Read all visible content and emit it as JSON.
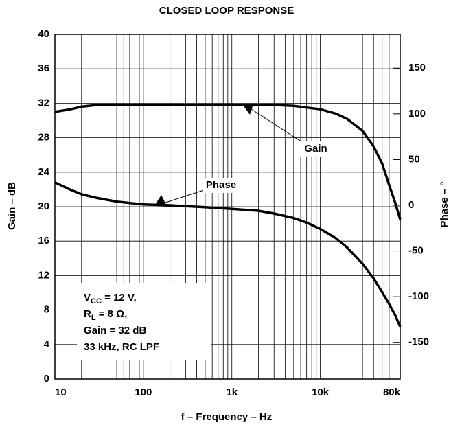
{
  "chart_data": {
    "type": "line",
    "title": "CLOSED LOOP RESPONSE",
    "xlabel": "f – Frequency – Hz",
    "ylabel": "Gain – dB",
    "y2label": "Phase – °",
    "xscale": "log",
    "xlim": [
      10,
      80000
    ],
    "xticks": [
      10,
      100,
      {
        "value": 1000,
        "label": "1k"
      },
      {
        "value": 10000,
        "label": "10k"
      },
      {
        "value": 80000,
        "label": "80k"
      }
    ],
    "ylim": [
      0,
      40
    ],
    "yticks": [
      0,
      4,
      8,
      12,
      16,
      20,
      24,
      28,
      32,
      36,
      40
    ],
    "y2lim": [
      -190,
      187
    ],
    "y2ticks": [
      -150,
      -100,
      -50,
      0,
      50,
      100,
      150
    ],
    "grid": true,
    "x": [
      10,
      15,
      20,
      30,
      50,
      100,
      200,
      500,
      1000,
      2000,
      3000,
      5000,
      7000,
      10000,
      15000,
      20000,
      30000,
      40000,
      50000,
      60000,
      70000,
      80000
    ],
    "series": [
      {
        "name": "Gain",
        "color": "#000000",
        "values": [
          31,
          31.3,
          31.6,
          31.8,
          31.8,
          31.8,
          31.8,
          31.8,
          31.8,
          31.8,
          31.8,
          31.7,
          31.5,
          31.3,
          30.8,
          30.2,
          28.8,
          27,
          25,
          22.5,
          20.5,
          18.5
        ]
      },
      {
        "name": "Phase",
        "color": "#000000",
        "axis": "y2",
        "values": [
          25,
          17,
          12,
          8,
          4,
          1,
          0,
          -2,
          -4,
          -6,
          -9,
          -14,
          -19,
          -26,
          -36,
          -46,
          -64,
          -80,
          -95,
          -108,
          -120,
          -133
        ]
      }
    ],
    "notes": [
      {
        "main": "V",
        "sub": "CC",
        "rest": " = 12 V,"
      },
      {
        "main": "R",
        "sub": "L",
        "rest": " = 8 Ω,"
      },
      {
        "main": "Gain = 32 dB"
      },
      {
        "main": "33 kHz, RC LPF"
      }
    ]
  }
}
